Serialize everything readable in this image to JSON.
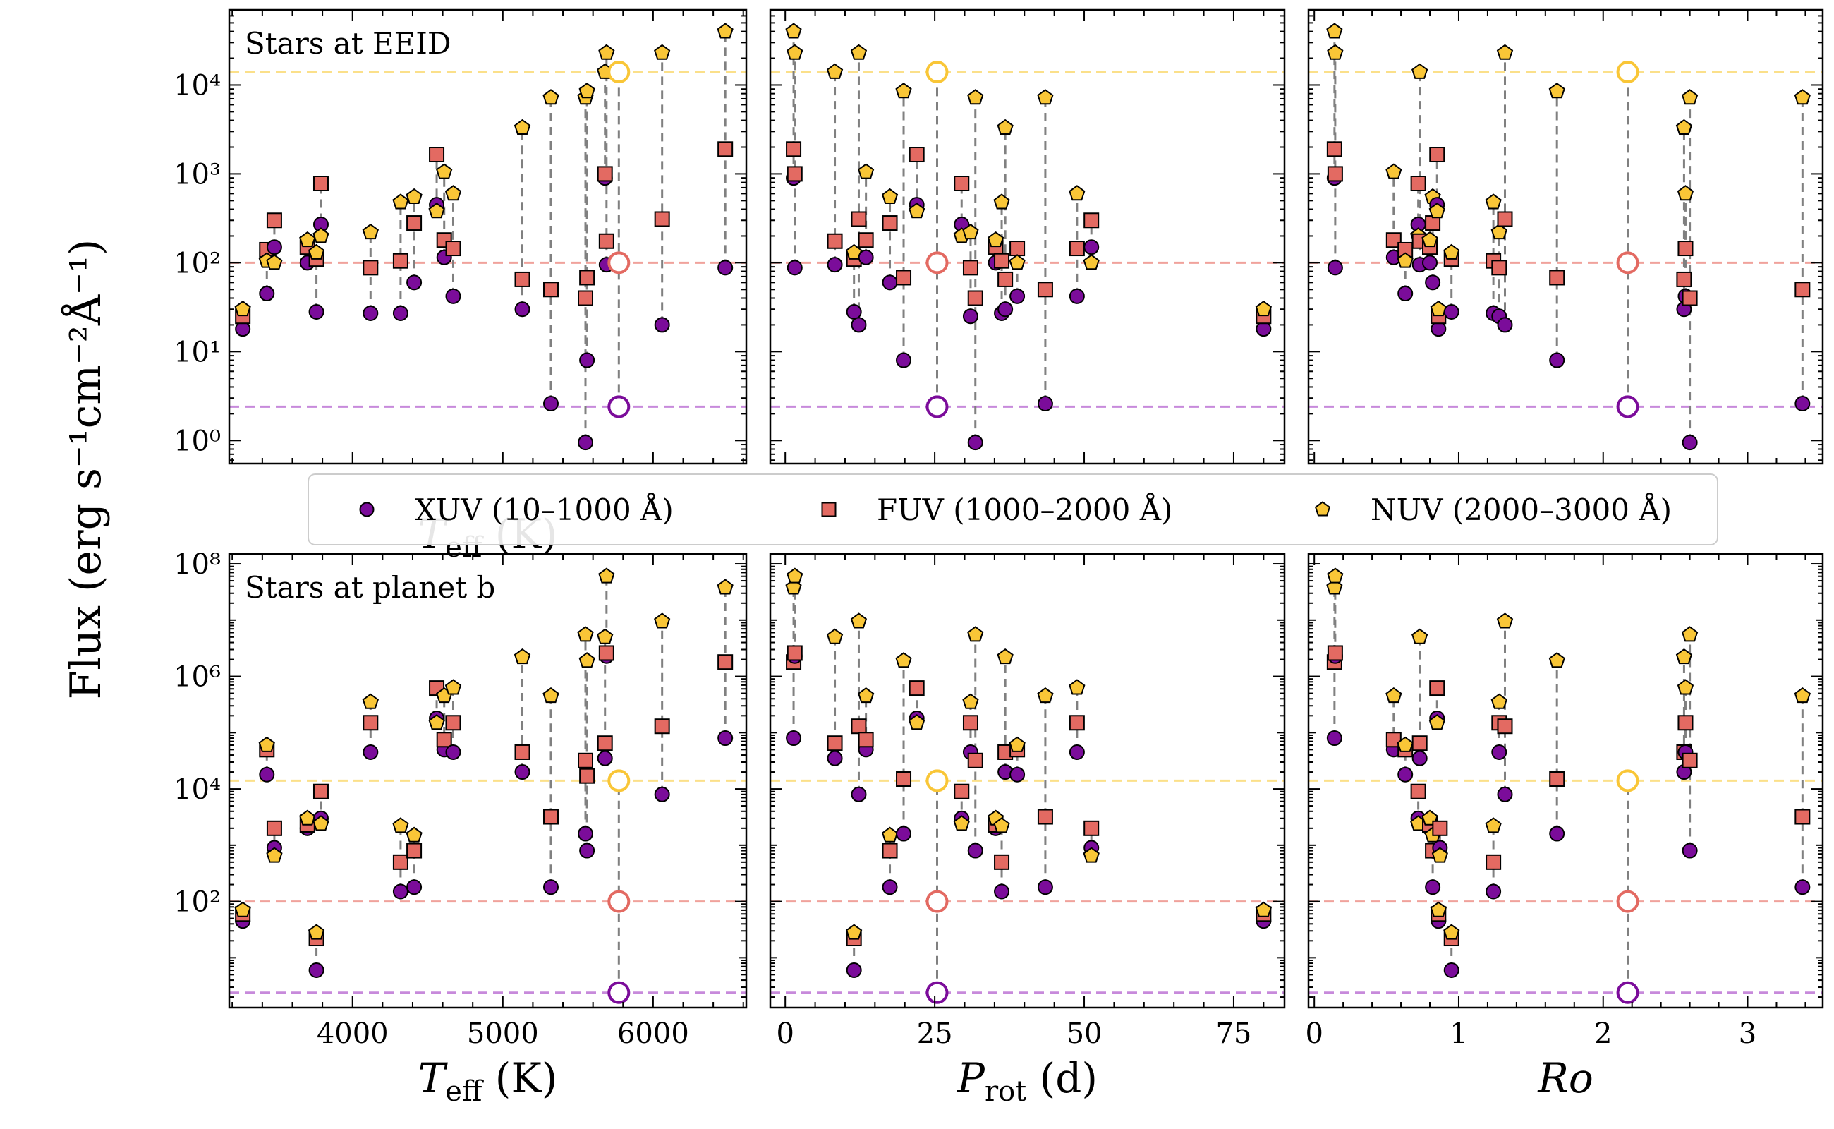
{
  "figure": {
    "ylabel": "Flux (erg s⁻¹cm⁻²Å⁻¹)"
  },
  "legend": {
    "placement": "center, between rows",
    "items": [
      {
        "key": "xuv",
        "label": "XUV (10–1000 Å)",
        "marker": "circle",
        "color": "#7B0C9A"
      },
      {
        "key": "fuv",
        "label": "FUV (1000–2000 Å)",
        "marker": "square",
        "color": "#E36A62"
      },
      {
        "key": "nuv",
        "label": "NUV (2000–3000 Å)",
        "marker": "pentagon",
        "color": "#F9C637"
      }
    ]
  },
  "chart_data": [
    {
      "type": "scatter",
      "panel": "eeid-teff",
      "annotation": "Stars at EEID",
      "xlabel_main": "T",
      "xlabel_sub": "eff",
      "xlabel_unit": " (K)",
      "xscale": "linear",
      "yscale": "log",
      "xlim": [
        3180,
        6620
      ],
      "ylim": [
        0.55,
        70000
      ],
      "xticks": [],
      "yticks": [
        1,
        10,
        100,
        1000,
        10000
      ],
      "reference_lines": {
        "xuv": 2.4,
        "fuv": 100,
        "nuv": 14000
      },
      "reference_x": 5772,
      "stars": [
        {
          "x": 3270,
          "xuv": 18,
          "fuv": 25,
          "nuv": 30
        },
        {
          "x": 3430,
          "xuv": 45,
          "fuv": 140,
          "nuv": 105
        },
        {
          "x": 3480,
          "xuv": 150,
          "fuv": 300,
          "nuv": 100
        },
        {
          "x": 3700,
          "xuv": 100,
          "fuv": 150,
          "nuv": 180
        },
        {
          "x": 3760,
          "xuv": 28,
          "fuv": 110,
          "nuv": 130
        },
        {
          "x": 3790,
          "xuv": 270,
          "fuv": 780,
          "nuv": 200
        },
        {
          "x": 4120,
          "xuv": 27,
          "fuv": 88,
          "nuv": 220
        },
        {
          "x": 4320,
          "xuv": 27,
          "fuv": 105,
          "nuv": 480
        },
        {
          "x": 4410,
          "xuv": 60,
          "fuv": 280,
          "nuv": 550
        },
        {
          "x": 4560,
          "xuv": 450,
          "fuv": 1650,
          "nuv": 380
        },
        {
          "x": 4610,
          "xuv": 115,
          "fuv": 180,
          "nuv": 1050
        },
        {
          "x": 4670,
          "xuv": 42,
          "fuv": 145,
          "nuv": 600
        },
        {
          "x": 5130,
          "xuv": 30,
          "fuv": 65,
          "nuv": 3300
        },
        {
          "x": 5320,
          "xuv": 2.6,
          "fuv": 50,
          "nuv": 7200
        },
        {
          "x": 5550,
          "xuv": 0.95,
          "fuv": 40,
          "nuv": 7200
        },
        {
          "x": 5560,
          "xuv": 8,
          "fuv": 68,
          "nuv": 8500
        },
        {
          "x": 5680,
          "xuv": 900,
          "fuv": 1000,
          "nuv": 14000
        },
        {
          "x": 5690,
          "xuv": 95,
          "fuv": 175,
          "nuv": 23000
        },
        {
          "x": 6060,
          "xuv": 20,
          "fuv": 310,
          "nuv": 23000
        },
        {
          "x": 6480,
          "xuv": 88,
          "fuv": 1900,
          "nuv": 40000
        }
      ],
      "sun": {
        "x": 5772,
        "xuv": 2.4,
        "fuv": 100,
        "nuv": 14000
      }
    },
    {
      "type": "scatter",
      "panel": "eeid-prot",
      "xscale": "linear",
      "yscale": "log",
      "xlim": [
        -2.5,
        83.5
      ],
      "ylim": [
        0.55,
        70000
      ],
      "xticks": [],
      "yticks": [
        1,
        10,
        100,
        1000,
        10000
      ],
      "reference_lines": {
        "xuv": 2.4,
        "fuv": 100,
        "nuv": 14000
      },
      "reference_x": 25.4,
      "stars": [
        {
          "x": 1.4,
          "xuv": 900,
          "fuv": 1900,
          "nuv": 40000
        },
        {
          "x": 1.6,
          "xuv": 88,
          "fuv": 1000,
          "nuv": 23000
        },
        {
          "x": 8.3,
          "xuv": 95,
          "fuv": 175,
          "nuv": 14000
        },
        {
          "x": 11.5,
          "xuv": 28,
          "fuv": 110,
          "nuv": 130
        },
        {
          "x": 12.3,
          "xuv": 20,
          "fuv": 310,
          "nuv": 23000
        },
        {
          "x": 13.5,
          "xuv": 115,
          "fuv": 180,
          "nuv": 1050
        },
        {
          "x": 17.5,
          "xuv": 60,
          "fuv": 280,
          "nuv": 550
        },
        {
          "x": 19.8,
          "xuv": 8,
          "fuv": 68,
          "nuv": 8500
        },
        {
          "x": 22.0,
          "xuv": 450,
          "fuv": 1650,
          "nuv": 380
        },
        {
          "x": 29.5,
          "xuv": 270,
          "fuv": 780,
          "nuv": 200
        },
        {
          "x": 31.0,
          "xuv": 25,
          "fuv": 88,
          "nuv": 220
        },
        {
          "x": 31.8,
          "xuv": 0.95,
          "fuv": 40,
          "nuv": 7200
        },
        {
          "x": 35.2,
          "xuv": 100,
          "fuv": 150,
          "nuv": 180
        },
        {
          "x": 36.2,
          "xuv": 27,
          "fuv": 105,
          "nuv": 480
        },
        {
          "x": 36.8,
          "xuv": 30,
          "fuv": 65,
          "nuv": 3300
        },
        {
          "x": 38.8,
          "xuv": 42,
          "fuv": 145,
          "nuv": 100
        },
        {
          "x": 43.5,
          "xuv": 2.6,
          "fuv": 50,
          "nuv": 7200
        },
        {
          "x": 48.8,
          "xuv": 42,
          "fuv": 145,
          "nuv": 600
        },
        {
          "x": 51.2,
          "xuv": 150,
          "fuv": 300,
          "nuv": 100
        },
        {
          "x": 80.0,
          "xuv": 18,
          "fuv": 25,
          "nuv": 30
        }
      ],
      "sun": {
        "x": 25.4,
        "xuv": 2.4,
        "fuv": 100,
        "nuv": 14000
      }
    },
    {
      "type": "scatter",
      "panel": "eeid-ro",
      "xscale": "linear",
      "yscale": "log",
      "xlim": [
        -0.04,
        3.52
      ],
      "ylim": [
        0.55,
        70000
      ],
      "xticks": [],
      "yticks": [
        1,
        10,
        100,
        1000,
        10000
      ],
      "reference_lines": {
        "xuv": 2.4,
        "fuv": 100,
        "nuv": 14000
      },
      "reference_x": 2.17,
      "stars": [
        {
          "x": 0.14,
          "xuv": 900,
          "fuv": 1900,
          "nuv": 40000
        },
        {
          "x": 0.145,
          "xuv": 88,
          "fuv": 1000,
          "nuv": 23000
        },
        {
          "x": 0.55,
          "xuv": 115,
          "fuv": 180,
          "nuv": 1050
        },
        {
          "x": 0.63,
          "xuv": 45,
          "fuv": 140,
          "nuv": 105
        },
        {
          "x": 0.72,
          "xuv": 270,
          "fuv": 780,
          "nuv": 200
        },
        {
          "x": 0.73,
          "xuv": 95,
          "fuv": 175,
          "nuv": 14000
        },
        {
          "x": 0.8,
          "xuv": 100,
          "fuv": 150,
          "nuv": 180
        },
        {
          "x": 0.82,
          "xuv": 60,
          "fuv": 280,
          "nuv": 550
        },
        {
          "x": 0.85,
          "xuv": 450,
          "fuv": 1650,
          "nuv": 380
        },
        {
          "x": 0.86,
          "xuv": 18,
          "fuv": 25,
          "nuv": 30
        },
        {
          "x": 0.95,
          "xuv": 28,
          "fuv": 110,
          "nuv": 130
        },
        {
          "x": 1.24,
          "xuv": 27,
          "fuv": 105,
          "nuv": 480
        },
        {
          "x": 1.28,
          "xuv": 25,
          "fuv": 88,
          "nuv": 220
        },
        {
          "x": 1.32,
          "xuv": 20,
          "fuv": 310,
          "nuv": 23000
        },
        {
          "x": 1.68,
          "xuv": 8,
          "fuv": 68,
          "nuv": 8500
        },
        {
          "x": 2.56,
          "xuv": 30,
          "fuv": 65,
          "nuv": 3300
        },
        {
          "x": 2.57,
          "xuv": 42,
          "fuv": 145,
          "nuv": 600
        },
        {
          "x": 2.6,
          "xuv": 0.95,
          "fuv": 40,
          "nuv": 7200
        },
        {
          "x": 3.38,
          "xuv": 2.6,
          "fuv": 50,
          "nuv": 7200
        }
      ],
      "sun": {
        "x": 2.17,
        "xuv": 2.4,
        "fuv": 100,
        "nuv": 14000
      }
    },
    {
      "type": "scatter",
      "panel": "planetb-teff",
      "annotation": "Stars at planet b",
      "xlabel_main": "T",
      "xlabel_sub": "eff",
      "xlabel_unit": " (K)",
      "xscale": "linear",
      "yscale": "log",
      "xlim": [
        3180,
        6620
      ],
      "ylim": [
        1.3,
        150000000
      ],
      "xticks": [
        4000,
        5000,
        6000
      ],
      "yticks": [
        100,
        10000,
        1000000,
        100000000
      ],
      "reference_lines": {
        "xuv": 2.4,
        "fuv": 100,
        "nuv": 14000
      },
      "reference_x": 5772,
      "stars": [
        {
          "x": 3270,
          "xuv": 45,
          "fuv": 60,
          "nuv": 70
        },
        {
          "x": 3430,
          "xuv": 18000,
          "fuv": 50000,
          "nuv": 60000
        },
        {
          "x": 3480,
          "xuv": 900,
          "fuv": 2000,
          "nuv": 650
        },
        {
          "x": 3700,
          "xuv": 2000,
          "fuv": 2300,
          "nuv": 3000
        },
        {
          "x": 3760,
          "xuv": 6,
          "fuv": 22,
          "nuv": 28
        },
        {
          "x": 3790,
          "xuv": 3000,
          "fuv": 9000,
          "nuv": 2400
        },
        {
          "x": 4120,
          "xuv": 45000,
          "fuv": 150000,
          "nuv": 350000
        },
        {
          "x": 4320,
          "xuv": 150,
          "fuv": 500,
          "nuv": 2200
        },
        {
          "x": 4410,
          "xuv": 180,
          "fuv": 800,
          "nuv": 1500
        },
        {
          "x": 4560,
          "xuv": 180000,
          "fuv": 620000,
          "nuv": 150000
        },
        {
          "x": 4610,
          "xuv": 50000,
          "fuv": 75000,
          "nuv": 450000
        },
        {
          "x": 4670,
          "xuv": 45000,
          "fuv": 150000,
          "nuv": 630000
        },
        {
          "x": 5130,
          "xuv": 20000,
          "fuv": 45000,
          "nuv": 2200000
        },
        {
          "x": 5320,
          "xuv": 180,
          "fuv": 3200,
          "nuv": 450000
        },
        {
          "x": 5550,
          "xuv": 1600,
          "fuv": 32000,
          "nuv": 5500000
        },
        {
          "x": 5560,
          "xuv": 800,
          "fuv": 17000,
          "nuv": 1900000
        },
        {
          "x": 5680,
          "xuv": 35000,
          "fuv": 65000,
          "nuv": 5000000
        },
        {
          "x": 5690,
          "xuv": 2300000,
          "fuv": 2600000,
          "nuv": 60000000
        },
        {
          "x": 6060,
          "xuv": 8000,
          "fuv": 130000,
          "nuv": 9500000
        },
        {
          "x": 6480,
          "xuv": 80000,
          "fuv": 1800000,
          "nuv": 38000000
        }
      ],
      "sun": {
        "x": 5772,
        "xuv": 2.4,
        "fuv": 100,
        "nuv": 14000
      }
    },
    {
      "type": "scatter",
      "panel": "planetb-prot",
      "xlabel_main": "P",
      "xlabel_sub": "rot",
      "xlabel_unit": " (d)",
      "xscale": "linear",
      "yscale": "log",
      "xlim": [
        -2.5,
        83.5
      ],
      "ylim": [
        1.3,
        150000000
      ],
      "xticks": [
        0,
        25,
        50,
        75
      ],
      "yticks": [
        100,
        10000,
        1000000,
        100000000
      ],
      "reference_lines": {
        "xuv": 2.4,
        "fuv": 100,
        "nuv": 14000
      },
      "reference_x": 25.4,
      "stars": [
        {
          "x": 1.4,
          "xuv": 80000,
          "fuv": 1800000,
          "nuv": 38000000
        },
        {
          "x": 1.6,
          "xuv": 2300000,
          "fuv": 2600000,
          "nuv": 60000000
        },
        {
          "x": 8.3,
          "xuv": 35000,
          "fuv": 65000,
          "nuv": 5000000
        },
        {
          "x": 11.5,
          "xuv": 6,
          "fuv": 22,
          "nuv": 28
        },
        {
          "x": 12.3,
          "xuv": 8000,
          "fuv": 130000,
          "nuv": 9500000
        },
        {
          "x": 13.5,
          "xuv": 50000,
          "fuv": 75000,
          "nuv": 450000
        },
        {
          "x": 17.5,
          "xuv": 180,
          "fuv": 800,
          "nuv": 1500
        },
        {
          "x": 19.8,
          "xuv": 1600,
          "fuv": 15000,
          "nuv": 1900000
        },
        {
          "x": 22.0,
          "xuv": 180000,
          "fuv": 620000,
          "nuv": 150000
        },
        {
          "x": 29.5,
          "xuv": 3000,
          "fuv": 9000,
          "nuv": 2400
        },
        {
          "x": 31.0,
          "xuv": 45000,
          "fuv": 150000,
          "nuv": 350000
        },
        {
          "x": 31.8,
          "xuv": 800,
          "fuv": 32000,
          "nuv": 5500000
        },
        {
          "x": 35.2,
          "xuv": 2000,
          "fuv": 2300,
          "nuv": 3000
        },
        {
          "x": 36.2,
          "xuv": 150,
          "fuv": 500,
          "nuv": 2200
        },
        {
          "x": 36.8,
          "xuv": 20000,
          "fuv": 45000,
          "nuv": 2200000
        },
        {
          "x": 38.8,
          "xuv": 18000,
          "fuv": 50000,
          "nuv": 60000
        },
        {
          "x": 43.5,
          "xuv": 180,
          "fuv": 3200,
          "nuv": 450000
        },
        {
          "x": 48.8,
          "xuv": 45000,
          "fuv": 150000,
          "nuv": 630000
        },
        {
          "x": 51.2,
          "xuv": 900,
          "fuv": 2000,
          "nuv": 650
        },
        {
          "x": 80.0,
          "xuv": 45,
          "fuv": 60,
          "nuv": 70
        }
      ],
      "sun": {
        "x": 25.4,
        "xuv": 2.4,
        "fuv": 100,
        "nuv": 14000
      }
    },
    {
      "type": "scatter",
      "panel": "planetb-ro",
      "xlabel_main": "Ro",
      "xlabel_sub": "",
      "xlabel_unit": "",
      "xscale": "linear",
      "yscale": "log",
      "xlim": [
        -0.04,
        3.52
      ],
      "ylim": [
        1.3,
        150000000
      ],
      "xticks": [
        0,
        1,
        2,
        3
      ],
      "yticks": [
        100,
        10000,
        1000000,
        100000000
      ],
      "reference_lines": {
        "xuv": 2.4,
        "fuv": 100,
        "nuv": 14000
      },
      "reference_x": 2.17,
      "stars": [
        {
          "x": 0.14,
          "xuv": 80000,
          "fuv": 1800000,
          "nuv": 38000000
        },
        {
          "x": 0.145,
          "xuv": 2300000,
          "fuv": 2600000,
          "nuv": 60000000
        },
        {
          "x": 0.55,
          "xuv": 50000,
          "fuv": 75000,
          "nuv": 450000
        },
        {
          "x": 0.63,
          "xuv": 18000,
          "fuv": 50000,
          "nuv": 60000
        },
        {
          "x": 0.72,
          "xuv": 3000,
          "fuv": 9000,
          "nuv": 2400
        },
        {
          "x": 0.73,
          "xuv": 35000,
          "fuv": 65000,
          "nuv": 5000000
        },
        {
          "x": 0.8,
          "xuv": 2000,
          "fuv": 2300,
          "nuv": 3000
        },
        {
          "x": 0.82,
          "xuv": 180,
          "fuv": 800,
          "nuv": 1500
        },
        {
          "x": 0.85,
          "xuv": 180000,
          "fuv": 620000,
          "nuv": 150000
        },
        {
          "x": 0.86,
          "xuv": 45,
          "fuv": 60,
          "nuv": 70
        },
        {
          "x": 0.87,
          "xuv": 900,
          "fuv": 2000,
          "nuv": 650
        },
        {
          "x": 0.95,
          "xuv": 6,
          "fuv": 22,
          "nuv": 28
        },
        {
          "x": 1.24,
          "xuv": 150,
          "fuv": 500,
          "nuv": 2200
        },
        {
          "x": 1.28,
          "xuv": 45000,
          "fuv": 150000,
          "nuv": 350000
        },
        {
          "x": 1.32,
          "xuv": 8000,
          "fuv": 130000,
          "nuv": 9500000
        },
        {
          "x": 1.68,
          "xuv": 1600,
          "fuv": 15000,
          "nuv": 1900000
        },
        {
          "x": 2.56,
          "xuv": 20000,
          "fuv": 45000,
          "nuv": 2200000
        },
        {
          "x": 2.57,
          "xuv": 45000,
          "fuv": 150000,
          "nuv": 630000
        },
        {
          "x": 2.6,
          "xuv": 800,
          "fuv": 32000,
          "nuv": 5500000
        },
        {
          "x": 3.38,
          "xuv": 180,
          "fuv": 3200,
          "nuv": 450000
        }
      ],
      "sun": {
        "x": 2.17,
        "xuv": 2.4,
        "fuv": 100,
        "nuv": 14000
      }
    }
  ]
}
